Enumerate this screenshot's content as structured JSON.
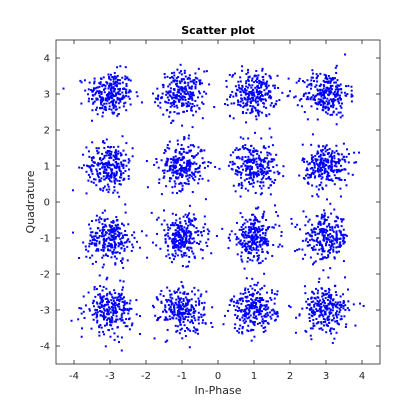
{
  "chart_data": {
    "type": "scatter",
    "title": "Scatter plot",
    "xlabel": "In-Phase",
    "ylabel": "Quadrature",
    "xlim": [
      -4.5,
      4.5
    ],
    "ylim": [
      -4.5,
      4.5
    ],
    "x_ticks": [
      -4,
      -3,
      -2,
      -1,
      0,
      1,
      2,
      3,
      4
    ],
    "y_ticks": [
      -4,
      -3,
      -2,
      -1,
      0,
      1,
      2,
      3,
      4
    ],
    "grid": false,
    "marker_color": "#0000ff",
    "constellation_centers": [
      [
        -3,
        3
      ],
      [
        -1,
        3
      ],
      [
        1,
        3
      ],
      [
        3,
        3
      ],
      [
        -3,
        1
      ],
      [
        -1,
        1
      ],
      [
        1,
        1
      ],
      [
        3,
        1
      ],
      [
        -3,
        -1
      ],
      [
        -1,
        -1
      ],
      [
        1,
        -1
      ],
      [
        3,
        -1
      ],
      [
        -3,
        -3
      ],
      [
        -1,
        -3
      ],
      [
        1,
        -3
      ],
      [
        3,
        -3
      ]
    ],
    "points_per_cluster": 260,
    "noise_std": 0.32
  }
}
